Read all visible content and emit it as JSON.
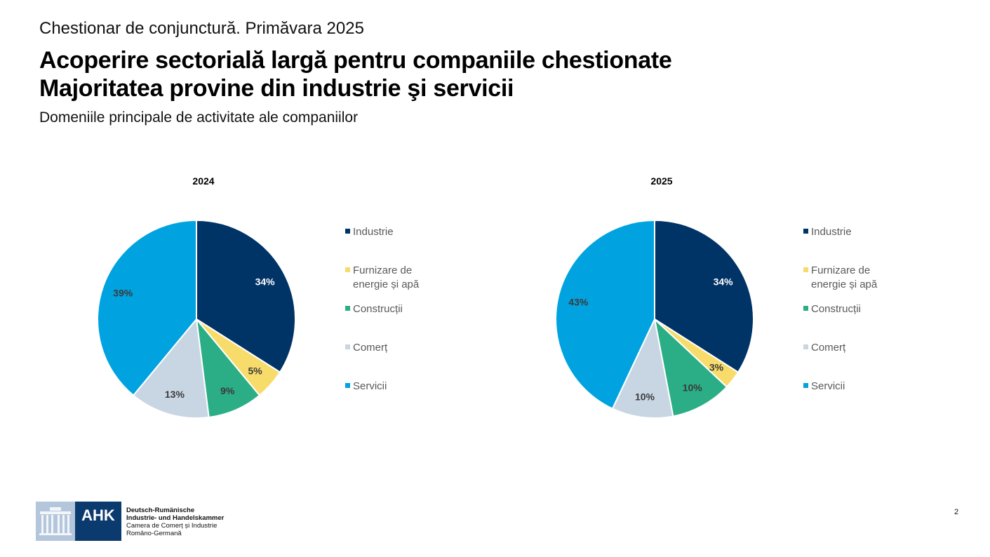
{
  "header": {
    "kicker": "Chestionar de conjunctură. Primăvara 2025",
    "headline_line1": "Acoperire sectorială largă pentru companiile chestionate",
    "headline_line2": "Majoritatea provine din industrie şi servicii",
    "subtitle": "Domeniile principale de activitate ale companiilor"
  },
  "chart_data": [
    {
      "type": "pie",
      "title": "2024",
      "categories": [
        "Industrie",
        "Furnizare de energie și apă",
        "Construcții",
        "Comerț",
        "Servicii"
      ],
      "legend_lines": [
        [
          "Industrie"
        ],
        [
          "Furnizare de",
          "energie și apă"
        ],
        [
          "Construcții"
        ],
        [
          "Comerț"
        ],
        [
          "Servicii"
        ]
      ],
      "values": [
        34,
        5,
        9,
        13,
        39
      ],
      "labels": [
        "34%",
        "5%",
        "9%",
        "13%",
        "39%"
      ],
      "colors": [
        "#003366",
        "#F8DC6B",
        "#2BAE85",
        "#C8D5E3",
        "#00A3E0"
      ],
      "legend_position": "right"
    },
    {
      "type": "pie",
      "title": "2025",
      "categories": [
        "Industrie",
        "Furnizare de energie și apă",
        "Construcții",
        "Comerț",
        "Servicii"
      ],
      "legend_lines": [
        [
          "Industrie"
        ],
        [
          "Furnizare de",
          "energie și apă"
        ],
        [
          "Construcții"
        ],
        [
          "Comerț"
        ],
        [
          "Servicii"
        ]
      ],
      "values": [
        34,
        3,
        10,
        10,
        43
      ],
      "labels": [
        "34%",
        "3%",
        "10%",
        "10%",
        "43%"
      ],
      "colors": [
        "#003366",
        "#F8DC6B",
        "#2BAE85",
        "#C8D5E3",
        "#00A3E0"
      ],
      "legend_position": "right"
    }
  ],
  "footer": {
    "logo_text": "AHK",
    "org_line1": "Deutsch-Rumänische",
    "org_line2": "Industrie- und Handelskammer",
    "org_line3": "Camera de Comerț și Industrie",
    "org_line4": "Româno-Germană",
    "page_number": "2"
  }
}
